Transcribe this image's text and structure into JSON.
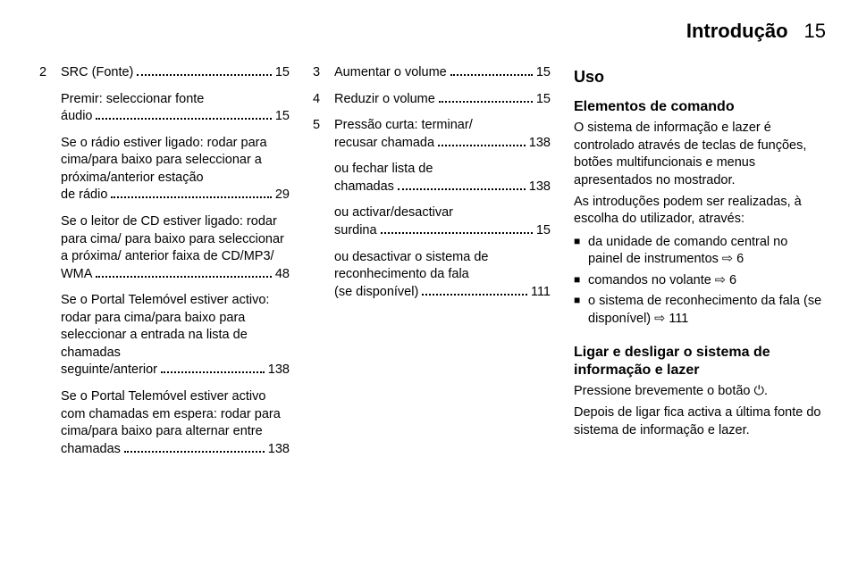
{
  "header": {
    "title": "Introdução",
    "page": "15"
  },
  "col1": {
    "num": "2",
    "first_line_pre": "SRC (Fonte)",
    "first_line_pg": "15",
    "p1a": "Premir: seleccionar fonte",
    "p1b_pre": "áudio",
    "p1b_pg": "15",
    "p2": "Se o rádio estiver ligado: rodar para cima/para baixo para seleccionar a próxima/anterior estação",
    "p2_last_pre": "de rádio",
    "p2_last_pg": "29",
    "p3": "Se o leitor de CD estiver ligado: rodar para cima/ para baixo para seleccionar a próxima/ anterior faixa de CD/MP3/",
    "p3_last_pre": "WMA",
    "p3_last_pg": "48",
    "p4": "Se o Portal Telemóvel estiver activo: rodar para cima/para baixo para seleccionar a entrada na lista de chamadas",
    "p4_last_pre": "seguinte/anterior",
    "p4_last_pg": "138",
    "p5": "Se o Portal Telemóvel estiver activo com chamadas em espera: rodar para cima/para baixo para alternar entre",
    "p5_last_pre": "chamadas",
    "p5_last_pg": "138"
  },
  "col2": {
    "r3_n": "3",
    "r3_pre": "Aumentar o volume",
    "r3_pg": "15",
    "r4_n": "4",
    "r4_pre": "Reduzir o volume",
    "r4_pg": "15",
    "r5_n": "5",
    "r5_line1": "Pressão curta: terminar/",
    "r5_line2_pre": "recusar chamada",
    "r5_line2_pg": "138",
    "b1a": "ou fechar lista de",
    "b1b_pre": "chamadas",
    "b1b_pg": "138",
    "b2a": "ou activar/desactivar",
    "b2b_pre": "surdina",
    "b2b_pg": "15",
    "b3a": "ou desactivar o sistema de reconhecimento da fala",
    "b3b_pre": "(se disponível)",
    "b3b_pg": "111"
  },
  "col3": {
    "h_uso": "Uso",
    "h_elem": "Elementos de comando",
    "p_elem": "O sistema de informação e lazer é controlado através de teclas de funções, botões multifuncionais e menus apresentados no mostrador.",
    "p_intro": "As introduções podem ser realizadas, à escolha do utilizador, através:",
    "li1": "da unidade de comando central no painel de instrumentos ⇨ 6",
    "li2": "comandos no volante ⇨ 6",
    "li3": "o sistema de reconhecimento da fala (se disponível) ⇨ 111",
    "h_ligar": "Ligar e desligar o sistema de informação e lazer",
    "p_ligar1": "Pressione brevemente o botão ⏻.",
    "p_ligar2": "Depois de ligar fica activa a última fonte do sistema de informação e lazer."
  }
}
